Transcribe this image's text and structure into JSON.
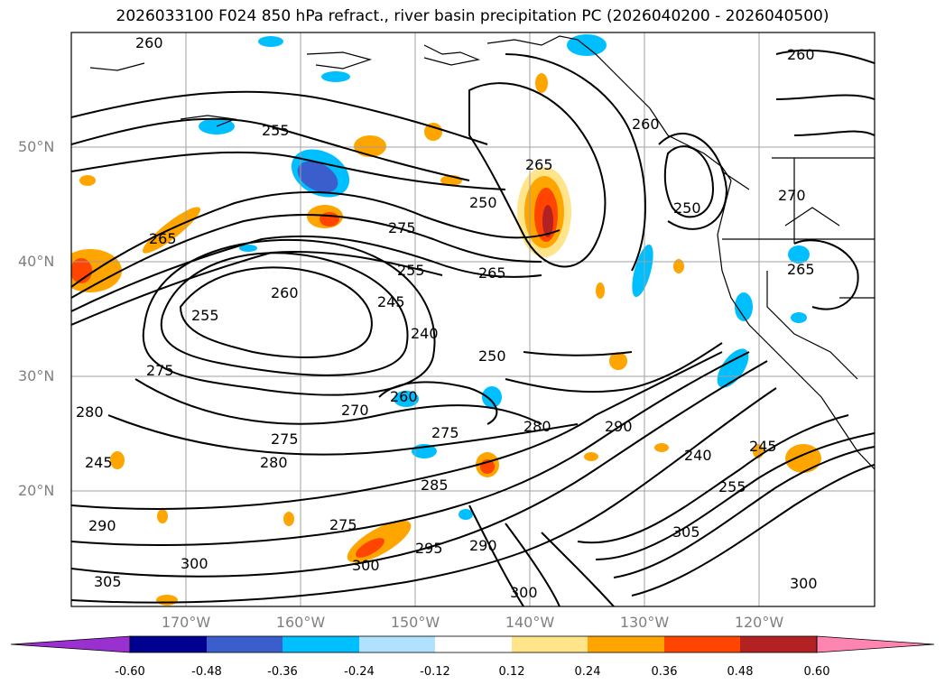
{
  "title": "2026033100 F024 850 hPa refract., river basin precipitation PC (2026040200 - 2026040500)",
  "latitudes": [
    "50°N",
    "40°N",
    "30°N",
    "20°N"
  ],
  "longitudes": [
    "170°W",
    "160°W",
    "150°W",
    "140°W",
    "130°W",
    "120°W"
  ],
  "contour_labels": [
    "260",
    "255",
    "265",
    "275",
    "250",
    "255",
    "260",
    "255",
    "245",
    "240",
    "250",
    "275",
    "260",
    "270",
    "275",
    "280",
    "285",
    "275",
    "280",
    "290",
    "295",
    "300",
    "305",
    "290",
    "300",
    "265",
    "240",
    "245",
    "255",
    "300",
    "305",
    "260",
    "265",
    "270",
    "250",
    "265",
    "280",
    "290",
    "275",
    "300",
    "245",
    "260"
  ],
  "colorbar": {
    "ticks": [
      "-0.60",
      "-0.48",
      "-0.36",
      "-0.24",
      "-0.12",
      "0.12",
      "0.24",
      "0.36",
      "0.48",
      "0.60"
    ],
    "colors": [
      "#9b30d0",
      "#000090",
      "#3a5fcd",
      "#00bfff",
      "#b0e2ff",
      "#ffffff",
      "#ffe48a",
      "#ffa500",
      "#ff4500",
      "#b22222",
      "#ff85b0"
    ]
  }
}
